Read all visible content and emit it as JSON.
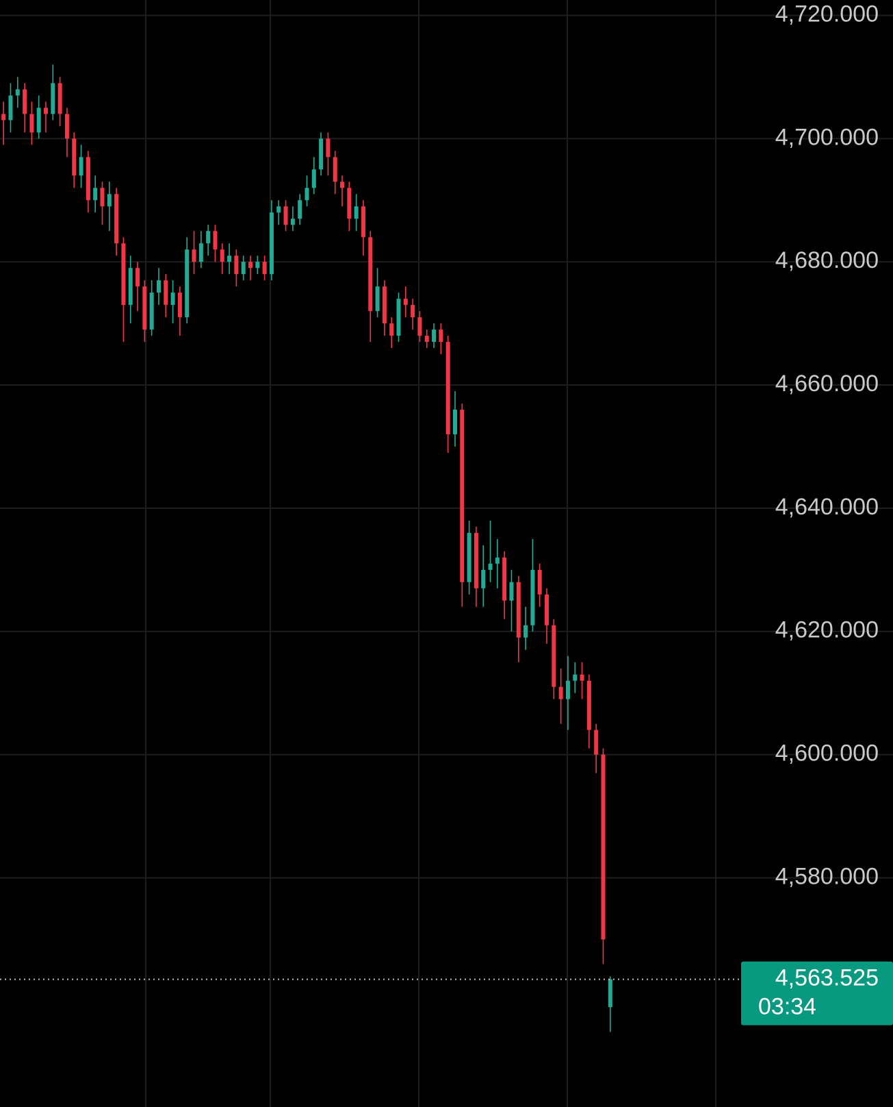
{
  "chart_data": {
    "type": "candlestick",
    "ylim": [
      4542.8,
      4722.5
    ],
    "yticks": [
      {
        "value": 4580,
        "label": "4,580.000"
      },
      {
        "value": 4600,
        "label": "4,600.000"
      },
      {
        "value": 4620,
        "label": "4,620.000"
      },
      {
        "value": 4640,
        "label": "4,640.000"
      },
      {
        "value": 4660,
        "label": "4,660.000"
      },
      {
        "value": 4680,
        "label": "4,680.000"
      },
      {
        "value": 4700,
        "label": "4,700.000"
      },
      {
        "value": 4720,
        "label": "4,720.000"
      }
    ],
    "grid": true,
    "up_color": "#22ab94",
    "down_color": "#f23645",
    "current_price": {
      "value": 4563.525,
      "label": "4,563.525"
    },
    "countdown": "03:34",
    "open": [
      4704,
      4703,
      4707,
      4708,
      4704,
      4701,
      4705,
      4704,
      4709,
      4704,
      4700,
      4694,
      4697,
      4690,
      4692,
      4689,
      4691,
      4683,
      4673,
      4679,
      4676,
      4669,
      4675,
      4677,
      4673,
      4675,
      4671,
      4682,
      4680,
      4683,
      4685,
      4682,
      4680,
      4681,
      4678,
      4680,
      4679,
      4680,
      4678,
      4688,
      4689,
      4686,
      4687,
      4690,
      4692,
      4695,
      4700,
      4697,
      4693,
      4692,
      4687,
      4689,
      4684,
      4672,
      4676,
      4670,
      4668,
      4674,
      4673,
      4671,
      4668,
      4667,
      4669,
      4667,
      4652,
      4656,
      4628,
      4636,
      4627,
      4630,
      4631,
      4632,
      4625,
      4628,
      4619,
      4621,
      4630,
      4626,
      4621,
      4611,
      4609,
      4612,
      4613,
      4612,
      4604,
      4600,
      4559
    ],
    "high": [
      4706,
      4709,
      4710,
      4709,
      4706,
      4707,
      4706,
      4712,
      4710,
      4705,
      4701,
      4699,
      4698,
      4694,
      4693,
      4693,
      4692,
      4684,
      4681,
      4680,
      4677,
      4677,
      4679,
      4678,
      4677,
      4676,
      4684,
      4685,
      4685,
      4686,
      4686,
      4683,
      4683,
      4682,
      4681,
      4681,
      4681,
      4681,
      4690,
      4690,
      4690,
      4689,
      4691,
      4694,
      4697,
      4701,
      4701,
      4698,
      4694,
      4693,
      4691,
      4690,
      4685,
      4679,
      4677,
      4671,
      4675,
      4676,
      4674,
      4672,
      4669,
      4670,
      4670,
      4668,
      4659,
      4657,
      4638,
      4637,
      4634,
      4638,
      4635,
      4633,
      4630,
      4629,
      4624,
      4635,
      4631,
      4627,
      4622,
      4614,
      4616,
      4615,
      4615,
      4613,
      4605,
      4601,
      4564
    ],
    "low": [
      4699,
      4701,
      4705,
      4701,
      4699,
      4700,
      4701,
      4703,
      4702,
      4697,
      4692,
      4692,
      4688,
      4688,
      4686,
      4685,
      4681,
      4667,
      4670,
      4672,
      4667,
      4668,
      4673,
      4671,
      4670,
      4668,
      4670,
      4678,
      4679,
      4681,
      4680,
      4678,
      4678,
      4676,
      4677,
      4677,
      4678,
      4677,
      4677,
      4686,
      4685,
      4685,
      4686,
      4689,
      4691,
      4694,
      4694,
      4691,
      4689,
      4685,
      4685,
      4681,
      4667,
      4671,
      4668,
      4666,
      4667,
      4671,
      4669,
      4667,
      4666,
      4666,
      4665,
      4649,
      4650,
      4624,
      4626,
      4624,
      4624,
      4628,
      4627,
      4622,
      4620,
      4615,
      4617,
      4620,
      4624,
      4618,
      4609,
      4605,
      4604,
      4610,
      4609,
      4601,
      4597,
      4566,
      4555
    ],
    "close": [
      4703,
      4707,
      4708,
      4704,
      4701,
      4705,
      4704,
      4709,
      4704,
      4700,
      4694,
      4697,
      4690,
      4692,
      4689,
      4691,
      4683,
      4673,
      4679,
      4676,
      4669,
      4675,
      4677,
      4673,
      4675,
      4671,
      4682,
      4680,
      4683,
      4685,
      4682,
      4680,
      4681,
      4678,
      4680,
      4679,
      4680,
      4678,
      4688,
      4689,
      4686,
      4687,
      4690,
      4692,
      4695,
      4700,
      4697,
      4693,
      4692,
      4687,
      4689,
      4684,
      4672,
      4676,
      4670,
      4668,
      4674,
      4673,
      4671,
      4668,
      4667,
      4669,
      4667,
      4652,
      4656,
      4628,
      4636,
      4627,
      4630,
      4631,
      4632,
      4625,
      4628,
      4619,
      4621,
      4630,
      4626,
      4621,
      4611,
      4609,
      4612,
      4613,
      4612,
      4604,
      4600,
      4570,
      4563.525
    ]
  }
}
